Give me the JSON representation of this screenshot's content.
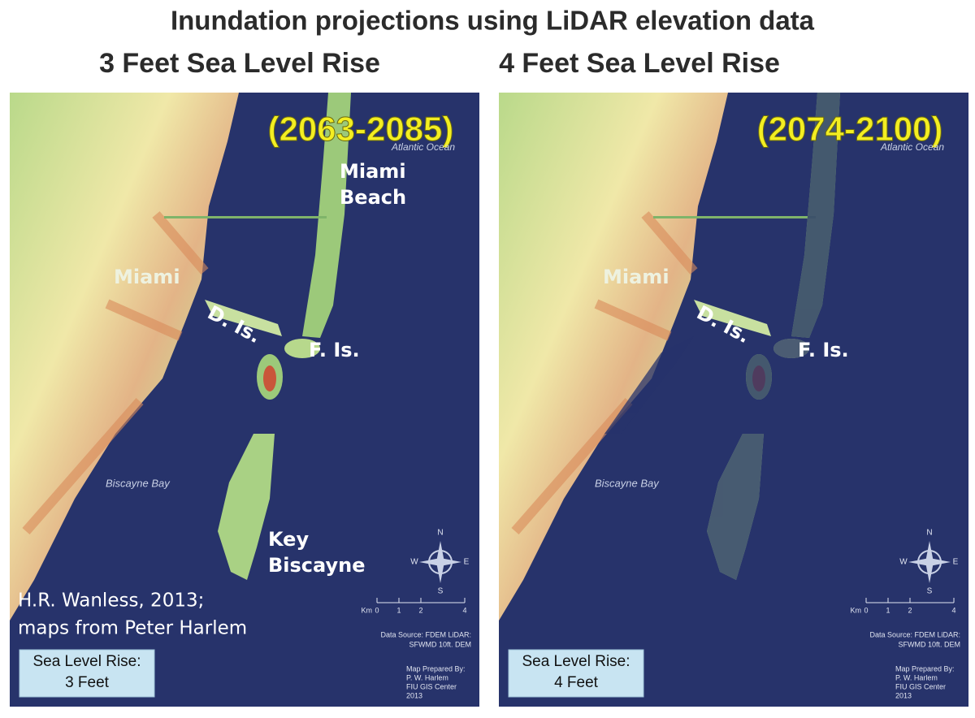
{
  "title": "Inundation projections using LiDAR elevation data",
  "panels": [
    {
      "heading": "3 Feet Sea Level Rise",
      "period": "(2063-2085)",
      "ocean": "Atlantic Ocean",
      "miami_beach": [
        "Miami",
        "Beach"
      ],
      "miami": "Miami",
      "d_island": "D. Is.",
      "f_island": "F. Is.",
      "bay": "Biscayne Bay",
      "key_biscayne": [
        "Key",
        "Biscayne"
      ],
      "credit": [
        "H.R. Wanless, 2013;",
        "maps from Peter Harlem"
      ],
      "compass": [
        "N",
        "E",
        "S",
        "W"
      ],
      "scale": {
        "unit": "Km",
        "ticks": [
          0,
          1,
          2,
          4
        ]
      },
      "source": [
        "Data Source: FDEM LiDAR:",
        "SFWMD 10ft. DEM"
      ],
      "prepared": [
        "Map Prepared By:",
        "P. W. Harlem",
        "FIU GIS Center",
        "2013"
      ],
      "legend": [
        "Sea Level Rise:",
        "3 Feet"
      ]
    },
    {
      "heading": "4 Feet Sea Level Rise",
      "period": "(2074-2100)",
      "ocean": "Atlantic Ocean",
      "miami": "Miami",
      "d_island": "D. Is.",
      "f_island": "F. Is.",
      "bay": "Biscayne Bay",
      "compass": [
        "N",
        "E",
        "S",
        "W"
      ],
      "scale": {
        "unit": "Km",
        "ticks": [
          0,
          1,
          2,
          4
        ]
      },
      "source": [
        "Data Source: FDEM LiDAR:",
        "SFWMD 10ft. DEM"
      ],
      "prepared": [
        "Map Prepared By:",
        "P. W. Harlem",
        "FIU GIS Center",
        "2013"
      ],
      "legend": [
        "Sea Level Rise:",
        "4 Feet"
      ]
    }
  ]
}
